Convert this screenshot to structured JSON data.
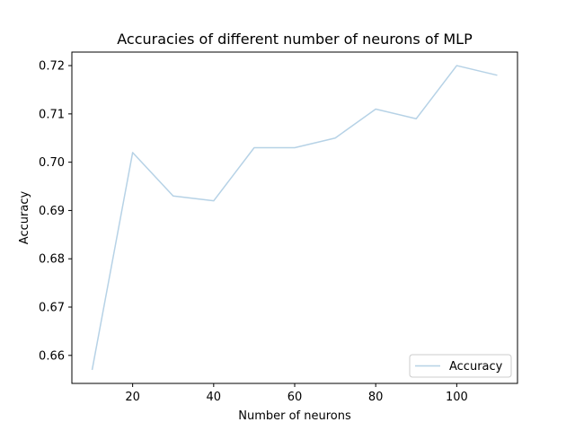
{
  "chart_data": {
    "type": "line",
    "title": "Accuracies of different number of neurons of MLP",
    "xlabel": "Number of neurons",
    "ylabel": "Accuracy",
    "x": [
      10,
      20,
      30,
      40,
      50,
      60,
      70,
      80,
      90,
      100,
      110
    ],
    "series": [
      {
        "name": "Accuracy",
        "color": "#b6d2e6",
        "values": [
          0.657,
          0.702,
          0.693,
          0.692,
          0.703,
          0.703,
          0.705,
          0.711,
          0.709,
          0.72,
          0.718
        ]
      }
    ],
    "xlim": [
      5,
      115
    ],
    "ylim": [
      0.6542,
      0.7228
    ],
    "xticks": [
      20,
      40,
      60,
      80,
      100
    ],
    "xtick_labels": [
      "20",
      "40",
      "60",
      "80",
      "100"
    ],
    "yticks": [
      0.66,
      0.67,
      0.68,
      0.69,
      0.7,
      0.71,
      0.72
    ],
    "ytick_labels": [
      "0.66",
      "0.67",
      "0.68",
      "0.69",
      "0.70",
      "0.71",
      "0.72"
    ],
    "grid": false,
    "legend": {
      "position": "lower-right",
      "entries": [
        "Accuracy"
      ]
    }
  }
}
